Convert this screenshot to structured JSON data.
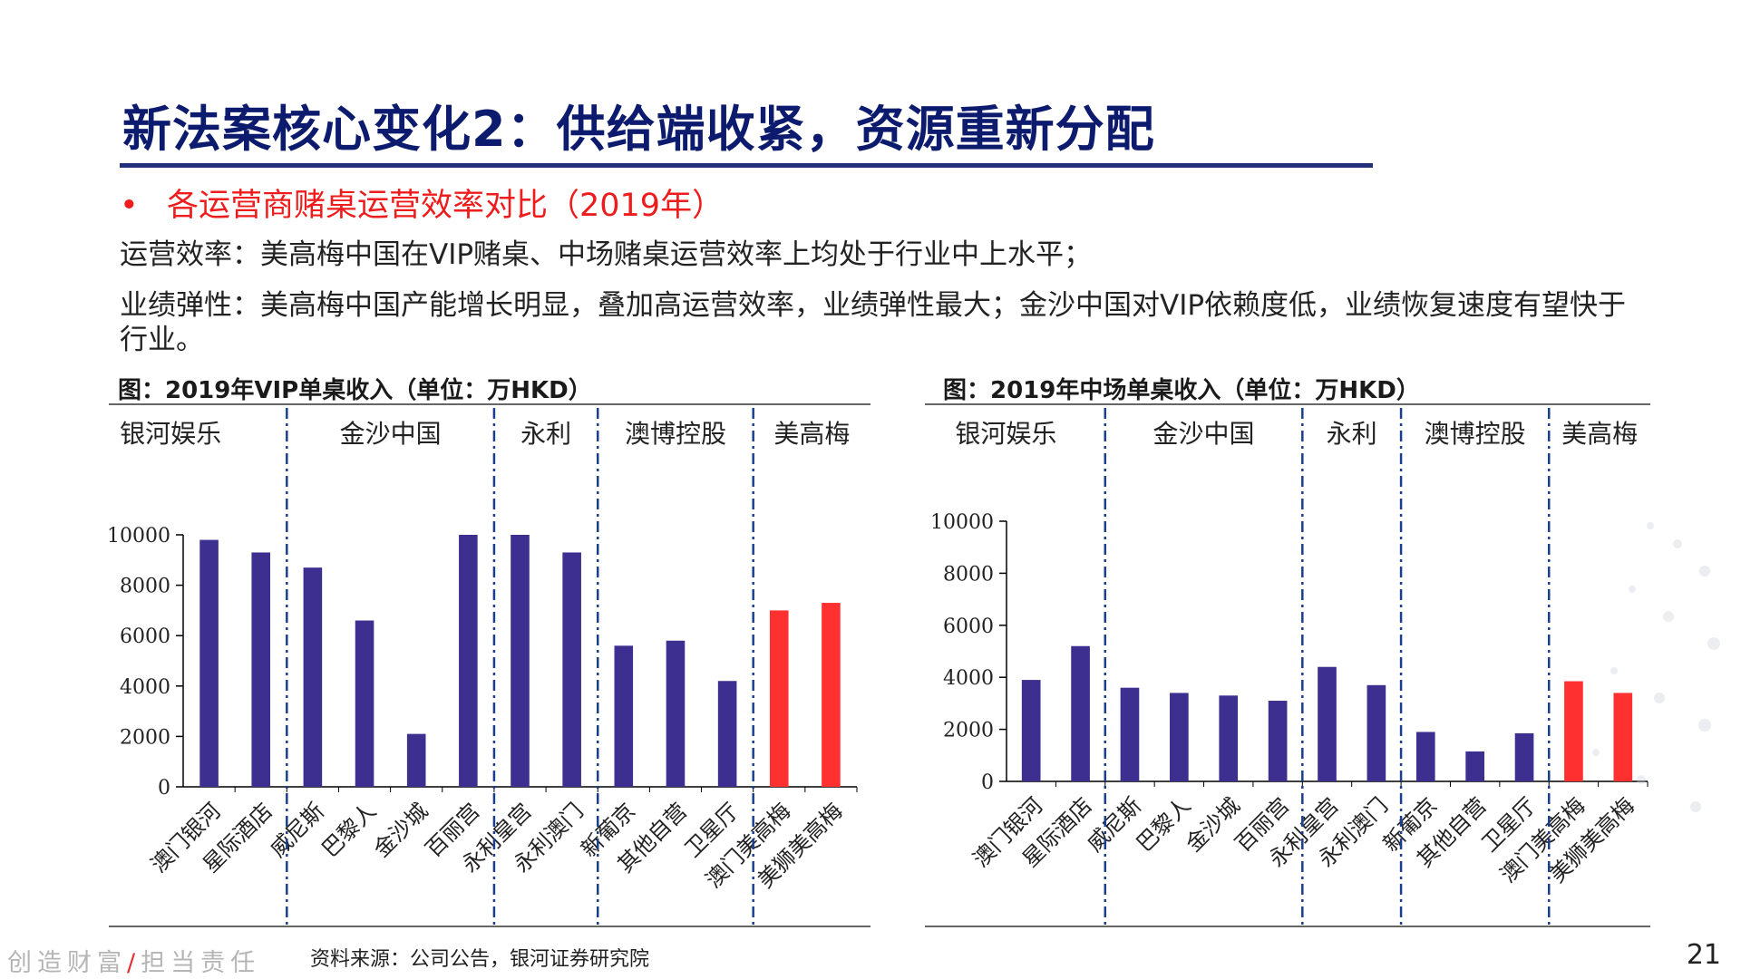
{
  "slide": {
    "title": "新法案核心变化2：供给端收紧，资源重新分配",
    "bullet": "•",
    "subtitle": "各运营商赌桌运营效率对比（2019年）",
    "paragraph1": "运营效率：美高梅中国在VIP赌桌、中场赌桌运营效率上均处于行业中上水平；",
    "paragraph2": "业绩弹性：美高梅中国产能增长明显，叠加高运营效率，业绩弹性最大；金沙中国对VIP依赖度低，业绩恢复速度有望快于行业。",
    "source": "资料来源：公司公告，银河证券研究院",
    "footer_motto": "创造财富",
    "footer_slash": "/",
    "footer_motto2": "担当责任",
    "page_number": "21"
  },
  "colors": {
    "title": "#0d1b6e",
    "rule": "#22307a",
    "bullet": "#ee1c1c",
    "bar": "#3d2f8f",
    "highlight_bar": "#ff3030",
    "divider": "#1b3f8f"
  },
  "chart_data": [
    {
      "type": "bar",
      "title": "图：2019年VIP单桌收入（单位：万HKD）",
      "groups": [
        {
          "name": "银河娱乐",
          "categories": [
            "澳门银河",
            "星际酒店"
          ]
        },
        {
          "name": "金沙中国",
          "categories": [
            "威尼斯",
            "巴黎人",
            "金沙城",
            "百丽宫"
          ]
        },
        {
          "name": "永利",
          "categories": [
            "永利皇宫",
            "永利澳门"
          ]
        },
        {
          "name": "澳博控股",
          "categories": [
            "新葡京",
            "其他自营",
            "卫星厅"
          ]
        },
        {
          "name": "美高梅",
          "categories": [
            "澳门美高梅",
            "美狮美高梅"
          ]
        }
      ],
      "categories": [
        "澳门银河",
        "星际酒店",
        "威尼斯",
        "巴黎人",
        "金沙城",
        "百丽宫",
        "永利皇宫",
        "永利澳门",
        "新葡京",
        "其他自营",
        "卫星厅",
        "澳门美高梅",
        "美狮美高梅"
      ],
      "values": [
        9800,
        9300,
        8700,
        6600,
        2100,
        10000,
        10000,
        9300,
        5600,
        5800,
        4200,
        7000,
        7300
      ],
      "highlight": [
        "澳门美高梅",
        "美狮美高梅"
      ],
      "yticks": [
        "0",
        "2000",
        "4000",
        "6000",
        "8000",
        "10000"
      ],
      "ylim": [
        0,
        10000
      ]
    },
    {
      "type": "bar",
      "title": "图：2019年中场单桌收入（单位：万HKD）",
      "groups": [
        {
          "name": "银河娱乐",
          "categories": [
            "澳门银河",
            "星际酒店"
          ]
        },
        {
          "name": "金沙中国",
          "categories": [
            "威尼斯",
            "巴黎人",
            "金沙城",
            "百丽宫"
          ]
        },
        {
          "name": "永利",
          "categories": [
            "永利皇宫",
            "永利澳门"
          ]
        },
        {
          "name": "澳博控股",
          "categories": [
            "新葡京",
            "其他自营",
            "卫星厅"
          ]
        },
        {
          "name": "美高梅",
          "categories": [
            "澳门美高梅",
            "美狮美高梅"
          ]
        }
      ],
      "categories": [
        "澳门银河",
        "星际酒店",
        "威尼斯",
        "巴黎人",
        "金沙城",
        "百丽宫",
        "永利皇宫",
        "永利澳门",
        "新葡京",
        "其他自营",
        "卫星厅",
        "澳门美高梅",
        "美狮美高梅"
      ],
      "values": [
        3900,
        5200,
        3600,
        3400,
        3300,
        3100,
        4400,
        3700,
        1900,
        1150,
        1850,
        3850,
        3400
      ],
      "highlight": [
        "澳门美高梅",
        "美狮美高梅"
      ],
      "yticks": [
        "0",
        "2000",
        "4000",
        "6000",
        "8000",
        "10000"
      ],
      "ylim": [
        0,
        10000
      ]
    }
  ]
}
